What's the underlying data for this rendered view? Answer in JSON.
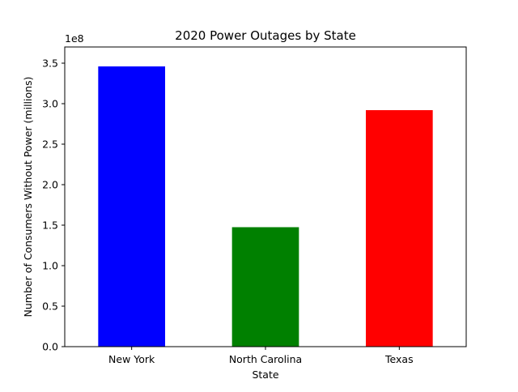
{
  "chart_data": {
    "type": "bar",
    "title": "2020 Power Outages by State",
    "xlabel": "State",
    "ylabel": "Number of Consumers Without Power (millions)",
    "y_offset_label": "1e8",
    "categories": [
      "New York",
      "North Carolina",
      "Texas"
    ],
    "values": [
      346000000,
      147500000,
      292000000
    ],
    "colors": [
      "#0000ff",
      "#008000",
      "#ff0000"
    ],
    "ylim": [
      0,
      370000000
    ],
    "yticks": [
      0,
      50000000,
      100000000,
      150000000,
      200000000,
      250000000,
      300000000,
      350000000
    ],
    "ytick_labels": [
      "0.0",
      "0.5",
      "1.0",
      "1.5",
      "2.0",
      "2.5",
      "3.0",
      "3.5"
    ],
    "grid": false,
    "legend": "none"
  }
}
